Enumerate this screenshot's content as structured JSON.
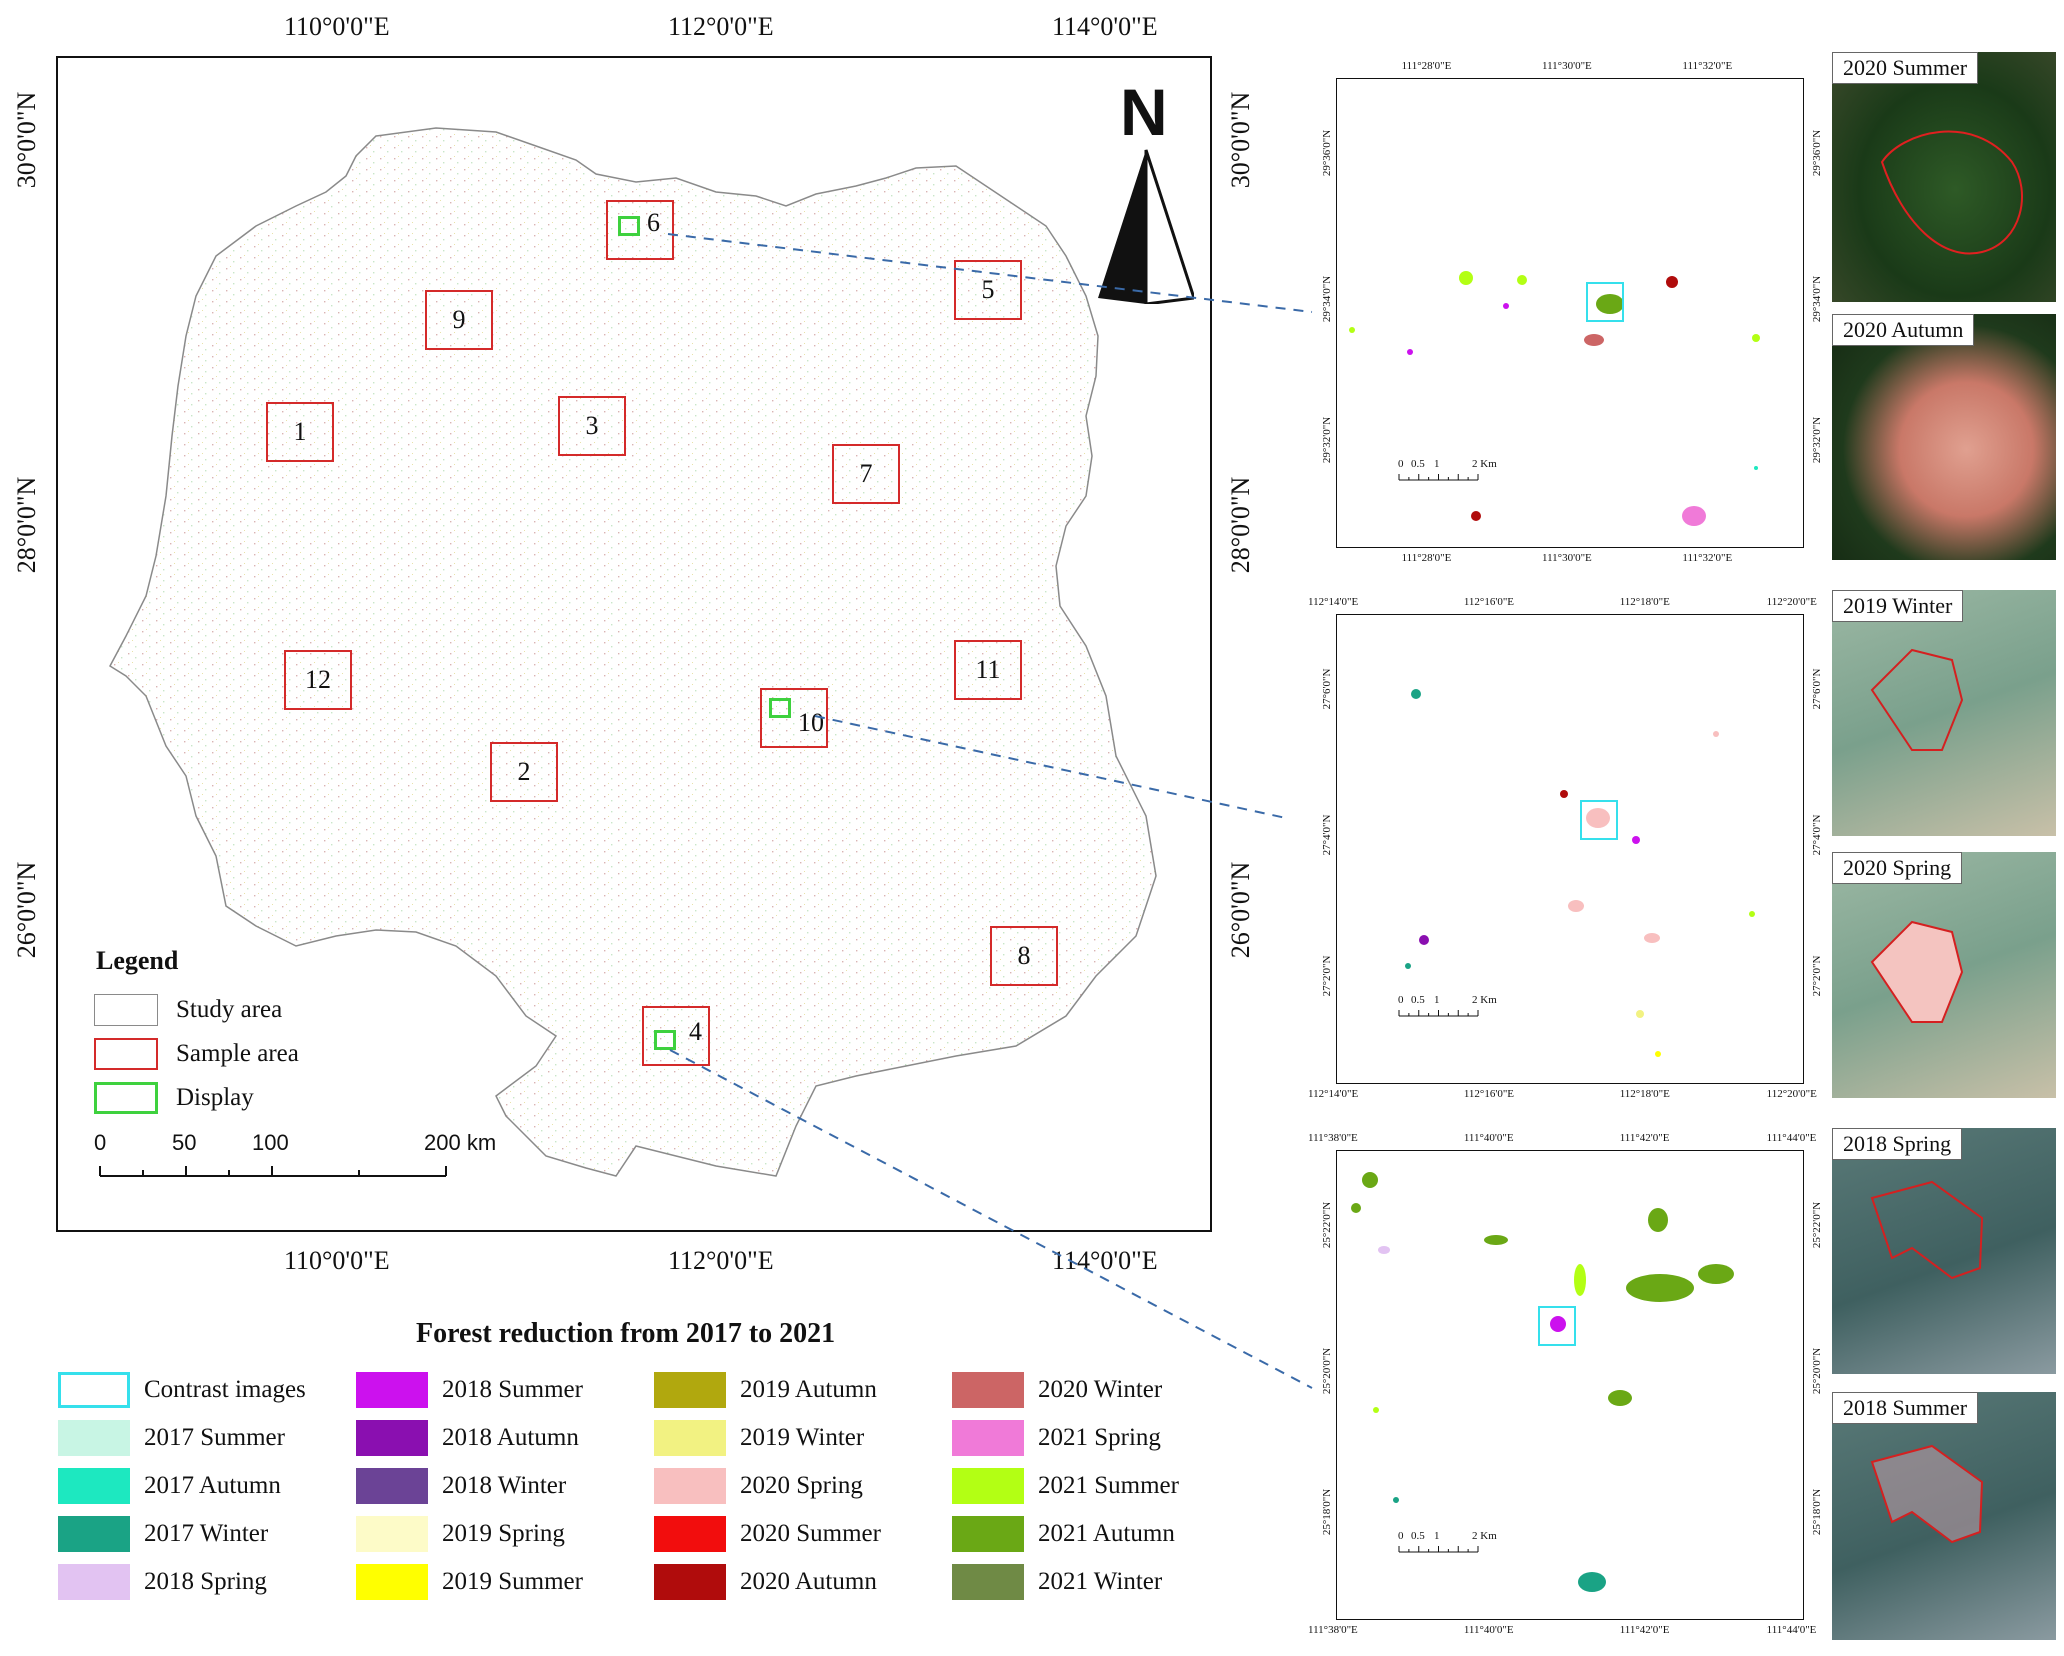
{
  "main_map": {
    "top_lon_labels": [
      "110°0'0\"E",
      "112°0'0\"E",
      "114°0'0\"E"
    ],
    "bottom_lon_labels": [
      "110°0'0\"E",
      "112°0'0\"E",
      "114°0'0\"E"
    ],
    "left_lat_labels": [
      "30°0'0\"N",
      "28°0'0\"N",
      "26°0'0\"N"
    ],
    "right_lat_labels": [
      "30°0'0\"N",
      "28°0'0\"N",
      "26°0'0\"N"
    ],
    "north_arrow": "N",
    "samples": [
      "1",
      "2",
      "3",
      "4",
      "5",
      "6",
      "7",
      "8",
      "9",
      "10",
      "11",
      "12"
    ],
    "legend": {
      "title": "Legend",
      "items": [
        "Study area",
        "Sample area",
        "Display"
      ],
      "scale_ticks": [
        "0",
        "50",
        "100",
        "200 km"
      ]
    }
  },
  "forest_legend": {
    "title": "Forest reduction from 2017 to 2021",
    "items": [
      {
        "label": "Contrast images",
        "color": "#ffffff",
        "border": "#35e0ec"
      },
      {
        "label": "2017 Summer",
        "color": "#c8f5e4"
      },
      {
        "label": "2017 Autumn",
        "color": "#1de8c0"
      },
      {
        "label": "2017 Winter",
        "color": "#1aa385"
      },
      {
        "label": "2018 Spring",
        "color": "#e2c3f2"
      },
      {
        "label": "2018 Summer",
        "color": "#cc11ee"
      },
      {
        "label": "2018 Autumn",
        "color": "#8a0fb0"
      },
      {
        "label": "2018 Winter",
        "color": "#6b4396"
      },
      {
        "label": "2019 Spring",
        "color": "#fdfbc8"
      },
      {
        "label": "2019 Summer",
        "color": "#ffff00"
      },
      {
        "label": "2019 Autumn",
        "color": "#b1a80e"
      },
      {
        "label": "2019 Winter",
        "color": "#f2f282"
      },
      {
        "label": "2020 Spring",
        "color": "#f8bfbf"
      },
      {
        "label": "2020 Summer",
        "color": "#f20d0d"
      },
      {
        "label": "2020 Autumn",
        "color": "#b00c0c"
      },
      {
        "label": "2020 Winter",
        "color": "#cc6565"
      },
      {
        "label": "2021 Spring",
        "color": "#f07ad8"
      },
      {
        "label": "2021 Summer",
        "color": "#b3ff14"
      },
      {
        "label": "2021 Autumn",
        "color": "#6aa815"
      },
      {
        "label": "2021 Winter",
        "color": "#6f8a45"
      }
    ]
  },
  "insets": [
    {
      "top_labels": [
        "111°28'0\"E",
        "111°30'0\"E",
        "111°32'0\"E"
      ],
      "bottom_labels": [
        "111°28'0\"E",
        "111°30'0\"E",
        "111°32'0\"E"
      ],
      "left_labels": [
        "29°36'0\"N",
        "29°34'0\"N",
        "29°32'0\"N"
      ],
      "right_labels": [
        "29°36'0\"N",
        "29°34'0\"N",
        "29°32'0\"N"
      ],
      "scale": [
        "0",
        "0.5",
        "1",
        "2 Km"
      ]
    },
    {
      "top_labels": [
        "112°14'0\"E",
        "112°16'0\"E",
        "112°18'0\"E",
        "112°20'0\"E"
      ],
      "bottom_labels": [
        "112°14'0\"E",
        "112°16'0\"E",
        "112°18'0\"E",
        "112°20'0\"E"
      ],
      "left_labels": [
        "27°6'0\"N",
        "27°4'0\"N",
        "27°2'0\"N"
      ],
      "right_labels": [
        "27°6'0\"N",
        "27°4'0\"N",
        "27°2'0\"N"
      ],
      "scale": [
        "0",
        "0.5",
        "1",
        "2 Km"
      ]
    },
    {
      "top_labels": [
        "111°38'0\"E",
        "111°40'0\"E",
        "111°42'0\"E",
        "111°44'0\"E"
      ],
      "bottom_labels": [
        "111°38'0\"E",
        "111°40'0\"E",
        "111°42'0\"E",
        "111°44'0\"E"
      ],
      "left_labels": [
        "25°22'0\"N",
        "25°20'0\"N",
        "25°18'0\"N"
      ],
      "right_labels": [
        "25°22'0\"N",
        "25°20'0\"N",
        "25°18'0\"N"
      ],
      "scale": [
        "0",
        "0.5",
        "1",
        "2 Km"
      ]
    }
  ],
  "thumbnails": [
    "2020 Summer",
    "2020 Autumn",
    "2019 Winter",
    "2020 Spring",
    "2018 Spring",
    "2018 Summer"
  ]
}
